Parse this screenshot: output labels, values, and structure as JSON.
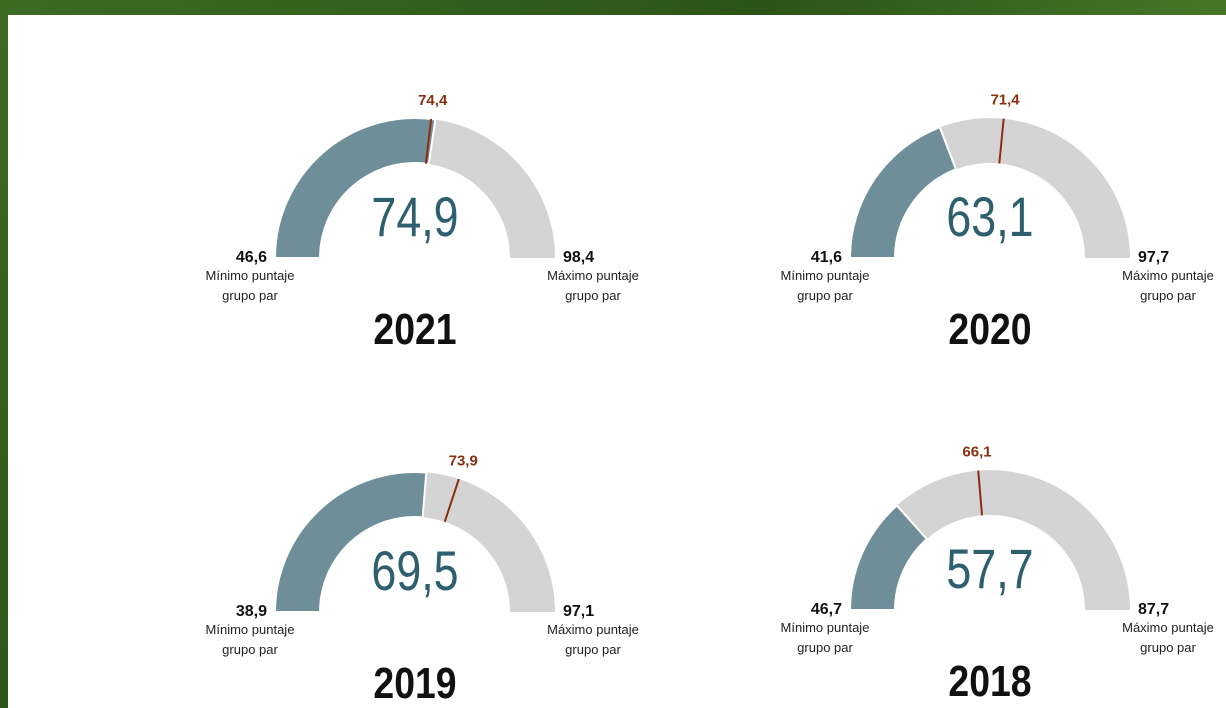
{
  "chart_data": [
    {
      "type": "gauge",
      "title": "2021",
      "value": 74.9,
      "value_label": "74,9",
      "min": {
        "value": 46.6,
        "label": "46,6"
      },
      "max": {
        "value": 98.4,
        "label": "98,4"
      },
      "target": {
        "value": 74.4,
        "label": "74,4"
      },
      "min_caption": "Mínimo puntaje grupo par",
      "max_caption": "Máximo puntaje grupo par",
      "color": "#6e8e99",
      "track_color": "#d4d4d4",
      "target_color": "#8a2f10"
    },
    {
      "type": "gauge",
      "title": "2020",
      "value": 63.1,
      "value_label": "63,1",
      "min": {
        "value": 41.6,
        "label": "41,6"
      },
      "max": {
        "value": 97.7,
        "label": "97,7"
      },
      "target": {
        "value": 71.4,
        "label": "71,4"
      },
      "min_caption": "Mínimo puntaje grupo par",
      "max_caption": "Máximo puntaje grupo par",
      "color": "#6e8e99",
      "track_color": "#d4d4d4",
      "target_color": "#8a2f10"
    },
    {
      "type": "gauge",
      "title": "2019",
      "value": 69.5,
      "value_label": "69,5",
      "min": {
        "value": 38.9,
        "label": "38,9"
      },
      "max": {
        "value": 97.1,
        "label": "97,1"
      },
      "target": {
        "value": 73.9,
        "label": "73,9"
      },
      "min_caption": "Mínimo puntaje grupo par",
      "max_caption": "Máximo puntaje grupo par",
      "color": "#6e8e99",
      "track_color": "#d4d4d4",
      "target_color": "#8a2f10"
    },
    {
      "type": "gauge",
      "title": "2018",
      "value": 57.7,
      "value_label": "57,7",
      "min": {
        "value": 46.7,
        "label": "46,7"
      },
      "max": {
        "value": 87.7,
        "label": "87,7"
      },
      "target": {
        "value": 66.1,
        "label": "66,1"
      },
      "min_caption": "Mínimo puntaje grupo par",
      "max_caption": "Máximo puntaje grupo par",
      "color": "#6e8e99",
      "track_color": "#d4d4d4",
      "target_color": "#8a2f10"
    }
  ]
}
